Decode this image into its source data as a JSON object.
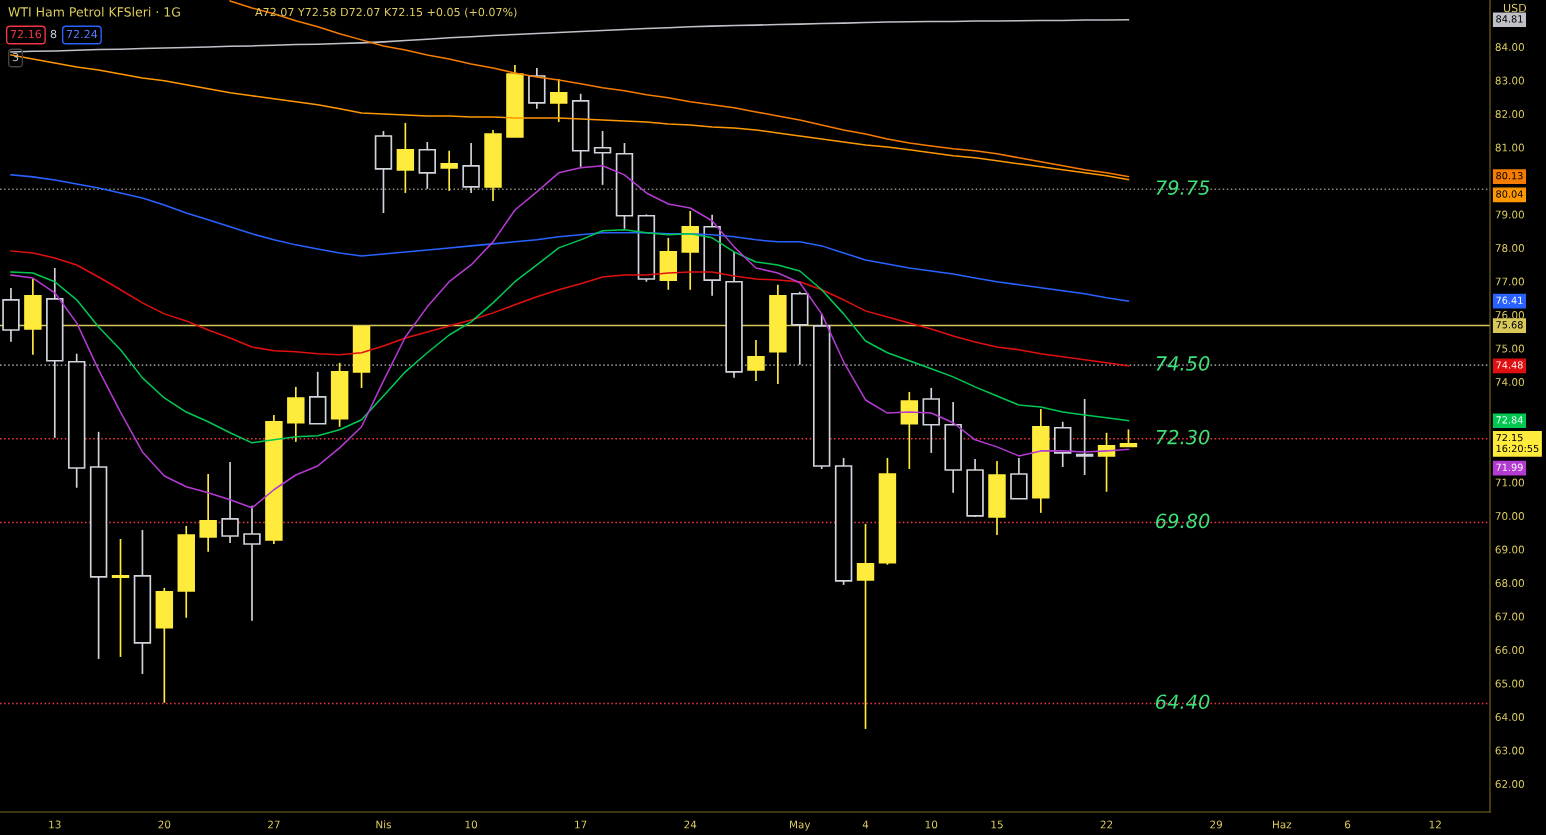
{
  "chart_data": {
    "type": "candlestick",
    "title": "WTI Ham Petrol KFSleri · 1G",
    "subtitle": "A72.07 Y72.58 D72.07 K72.15 +0.05 (+0.07%)",
    "categories": [
      null,
      null,
      "13",
      null,
      null,
      null,
      null,
      "20",
      null,
      null,
      null,
      null,
      "27",
      null,
      null,
      null,
      null,
      "Nis",
      null,
      null,
      null,
      "10",
      null,
      null,
      null,
      null,
      "17",
      null,
      null,
      null,
      null,
      "24",
      null,
      null,
      null,
      null,
      "May",
      null,
      null,
      "4",
      null,
      null,
      "10",
      null,
      null,
      "15",
      null,
      null,
      null,
      null,
      "22",
      null,
      null,
      null,
      null,
      "29",
      null,
      null,
      "Haz",
      null,
      null,
      "6",
      null,
      null,
      null,
      "12",
      null,
      null
    ],
    "ohlc": [
      [
        76.45,
        76.8,
        75.2,
        75.55
      ],
      [
        75.58,
        77.07,
        74.81,
        76.57
      ],
      [
        76.48,
        77.4,
        72.33,
        74.63
      ],
      [
        74.6,
        74.84,
        70.84,
        71.43
      ],
      [
        71.46,
        72.51,
        65.73,
        68.18
      ],
      [
        68.17,
        69.31,
        65.79,
        68.2
      ],
      [
        68.21,
        69.58,
        65.28,
        66.21
      ],
      [
        66.66,
        67.85,
        64.42,
        67.73
      ],
      [
        67.76,
        69.7,
        66.96,
        69.43
      ],
      [
        69.37,
        71.25,
        68.93,
        69.85
      ],
      [
        69.91,
        71.61,
        69.19,
        69.4
      ],
      [
        69.46,
        70.3,
        66.87,
        69.16
      ],
      [
        69.28,
        73.01,
        69.16,
        72.81
      ],
      [
        72.78,
        73.85,
        72.21,
        73.52
      ],
      [
        73.55,
        74.3,
        72.75,
        72.75
      ],
      [
        72.9,
        74.57,
        72.66,
        74.3
      ],
      [
        74.3,
        75.64,
        73.82,
        75.64
      ],
      [
        81.34,
        81.49,
        79.04,
        80.36
      ],
      [
        80.33,
        81.73,
        79.64,
        80.93
      ],
      [
        80.93,
        81.16,
        79.76,
        80.24
      ],
      [
        80.39,
        80.9,
        79.7,
        80.51
      ],
      [
        80.45,
        81.13,
        79.64,
        79.82
      ],
      [
        79.82,
        81.52,
        79.4,
        81.4
      ],
      [
        81.31,
        83.46,
        81.31,
        83.19
      ],
      [
        83.13,
        83.37,
        82.15,
        82.33
      ],
      [
        82.33,
        83.04,
        81.76,
        82.63
      ],
      [
        82.39,
        82.6,
        80.42,
        80.9
      ],
      [
        80.99,
        81.49,
        79.88,
        80.84
      ],
      [
        80.81,
        81.13,
        78.57,
        78.96
      ],
      [
        78.96,
        79.0,
        76.99,
        77.07
      ],
      [
        77.04,
        78.3,
        76.75,
        77.88
      ],
      [
        77.88,
        79.1,
        76.75,
        78.63
      ],
      [
        78.63,
        78.99,
        76.57,
        77.04
      ],
      [
        76.99,
        77.88,
        74.12,
        74.3
      ],
      [
        74.36,
        75.25,
        74.03,
        74.75
      ],
      [
        74.9,
        76.9,
        73.94,
        76.57
      ],
      [
        76.63,
        76.69,
        74.51,
        75.7
      ],
      [
        75.67,
        76.03,
        71.4,
        71.49
      ],
      [
        71.49,
        71.73,
        67.94,
        68.06
      ],
      [
        68.09,
        69.76,
        63.64,
        68.57
      ],
      [
        68.6,
        71.73,
        68.54,
        71.25
      ],
      [
        72.75,
        73.7,
        71.4,
        73.43
      ],
      [
        73.49,
        73.82,
        71.88,
        72.72
      ],
      [
        72.72,
        73.4,
        70.69,
        71.37
      ],
      [
        71.37,
        71.7,
        69.97,
        70.0
      ],
      [
        69.97,
        71.64,
        69.43,
        71.22
      ],
      [
        71.25,
        71.73,
        70.51,
        70.51
      ],
      [
        70.54,
        73.19,
        70.09,
        72.66
      ],
      [
        72.63,
        72.81,
        71.46,
        71.88
      ],
      [
        71.82,
        73.49,
        71.22,
        71.79
      ],
      [
        71.79,
        72.48,
        70.72,
        72.09
      ],
      [
        72.07,
        72.58,
        72.07,
        72.15
      ],
      null,
      null,
      null,
      null,
      null,
      null,
      null,
      null,
      null,
      null,
      null,
      null,
      null,
      null,
      null,
      null
    ],
    "colors": [
      "#d1d4dc",
      "#ffeb3b",
      "#d1d4dc",
      "#d1d4dc",
      "#d1d4dc",
      "#ffeb3b",
      "#d1d4dc",
      "#ffeb3b",
      "#ffeb3b",
      "#ffeb3b",
      "#d1d4dc",
      "#d1d4dc",
      "#ffeb3b",
      "#ffeb3b",
      "#d1d4dc",
      "#ffeb3b",
      "#ffeb3b",
      "#d1d4dc",
      "#ffeb3b",
      "#d1d4dc",
      "#ffeb3b",
      "#d1d4dc",
      "#ffeb3b",
      "#ffeb3b",
      "#d1d4dc",
      "#ffeb3b",
      "#d1d4dc",
      "#d1d4dc",
      "#d1d4dc",
      "#d1d4dc",
      "#ffeb3b",
      "#ffeb3b",
      "#d1d4dc",
      "#d1d4dc",
      "#ffeb3b",
      "#ffeb3b",
      "#d1d4dc",
      "#d1d4dc",
      "#d1d4dc",
      "#ffeb3b",
      "#ffeb3b",
      "#ffeb3b",
      "#d1d4dc",
      "#d1d4dc",
      "#d1d4dc",
      "#ffeb3b",
      "#d1d4dc",
      "#ffeb3b",
      "#d1d4dc",
      "#d1d4dc",
      "#ffeb3b",
      "#ffeb3b",
      null,
      null,
      null,
      null,
      null,
      null,
      null,
      null,
      null,
      null,
      null,
      null,
      null,
      null,
      null,
      null
    ],
    "series": [
      {
        "type": "line",
        "color": "#c0c0c8",
        "values": [
          83.85,
          83.87,
          83.88,
          83.9,
          83.92,
          83.93,
          83.95,
          83.97,
          83.98,
          84.0,
          84.02,
          84.03,
          84.05,
          84.07,
          84.08,
          84.1,
          84.12,
          84.15,
          84.19,
          84.23,
          84.27,
          84.3,
          84.34,
          84.37,
          84.4,
          84.43,
          84.46,
          84.49,
          84.52,
          84.55,
          84.57,
          84.6,
          84.62,
          84.64,
          84.65,
          84.67,
          84.68,
          84.7,
          84.71,
          84.73,
          84.74,
          84.75,
          84.76,
          84.76,
          84.77,
          84.77,
          84.78,
          84.79,
          84.79,
          84.8,
          84.8,
          84.81,
          null,
          null,
          null,
          null,
          null,
          null,
          null,
          null,
          null,
          null,
          null,
          null,
          null,
          null,
          null,
          null
        ]
      },
      {
        "type": "line",
        "color": "#f57c00",
        "values": [
          null,
          null,
          null,
          null,
          null,
          null,
          null,
          null,
          null,
          null,
          85.37,
          85.16,
          84.99,
          84.78,
          84.6,
          84.39,
          84.21,
          84.03,
          83.91,
          83.76,
          83.64,
          83.49,
          83.37,
          83.22,
          83.1,
          83.01,
          82.9,
          82.78,
          82.69,
          82.57,
          82.48,
          82.36,
          82.27,
          82.18,
          82.06,
          81.94,
          81.82,
          81.67,
          81.52,
          81.4,
          81.25,
          81.13,
          81.04,
          80.96,
          80.9,
          80.81,
          80.69,
          80.57,
          80.45,
          80.33,
          80.24,
          80.13,
          null,
          null,
          null,
          null,
          null,
          null,
          null,
          null,
          null,
          null,
          null,
          null,
          null,
          null,
          null,
          null
        ]
      },
      {
        "type": "line",
        "color": "#ff9800",
        "values": [
          83.76,
          83.64,
          83.52,
          83.4,
          83.31,
          83.19,
          83.07,
          82.99,
          82.87,
          82.75,
          82.63,
          82.54,
          82.45,
          82.36,
          82.27,
          82.15,
          82.03,
          82.0,
          81.97,
          81.94,
          81.94,
          81.91,
          81.91,
          81.88,
          81.88,
          81.88,
          81.85,
          81.82,
          81.79,
          81.76,
          81.7,
          81.67,
          81.61,
          81.58,
          81.52,
          81.43,
          81.34,
          81.25,
          81.16,
          81.07,
          81.01,
          80.93,
          80.84,
          80.75,
          80.69,
          80.6,
          80.51,
          80.42,
          80.33,
          80.24,
          80.15,
          80.04,
          null,
          null,
          null,
          null,
          null,
          null,
          null,
          null,
          null,
          null,
          null,
          null,
          null,
          null,
          null,
          null
        ]
      },
      {
        "type": "line",
        "color": "#2962ff",
        "values": [
          80.18,
          80.12,
          80.03,
          79.91,
          79.79,
          79.64,
          79.49,
          79.28,
          79.04,
          78.84,
          78.63,
          78.42,
          78.24,
          78.09,
          77.97,
          77.85,
          77.76,
          77.82,
          77.88,
          77.94,
          78.0,
          78.06,
          78.12,
          78.18,
          78.24,
          78.33,
          78.39,
          78.45,
          78.45,
          78.45,
          78.42,
          78.42,
          78.39,
          78.33,
          78.24,
          78.18,
          78.18,
          78.06,
          77.85,
          77.64,
          77.52,
          77.4,
          77.31,
          77.22,
          77.1,
          76.99,
          76.9,
          76.81,
          76.72,
          76.63,
          76.51,
          76.41,
          null,
          null,
          null,
          null,
          null,
          null,
          null,
          null,
          null,
          null,
          null,
          null,
          null,
          null,
          null,
          null
        ]
      },
      {
        "type": "line",
        "color": "#e01010",
        "values": [
          77.91,
          77.85,
          77.7,
          77.49,
          77.13,
          76.75,
          76.36,
          76.03,
          75.82,
          75.55,
          75.31,
          75.04,
          74.93,
          74.9,
          74.84,
          74.81,
          74.87,
          75.07,
          75.31,
          75.49,
          75.67,
          75.85,
          76.06,
          76.3,
          76.54,
          76.75,
          76.93,
          77.13,
          77.19,
          77.19,
          77.25,
          77.28,
          77.28,
          77.16,
          77.07,
          77.04,
          76.99,
          76.75,
          76.45,
          76.12,
          75.94,
          75.76,
          75.58,
          75.37,
          75.19,
          75.04,
          74.96,
          74.84,
          74.75,
          74.66,
          74.57,
          74.48,
          null,
          null,
          null,
          null,
          null,
          null,
          null,
          null,
          null,
          null,
          null,
          null,
          null,
          null,
          null,
          null
        ]
      },
      {
        "type": "line",
        "color": "#00c853",
        "values": [
          77.28,
          77.25,
          76.99,
          76.45,
          75.64,
          74.96,
          74.12,
          73.52,
          73.1,
          72.81,
          72.48,
          72.18,
          72.27,
          72.36,
          72.39,
          72.57,
          72.87,
          73.58,
          74.3,
          74.87,
          75.4,
          75.79,
          76.36,
          76.99,
          77.49,
          78.0,
          78.24,
          78.51,
          78.54,
          78.45,
          78.39,
          78.42,
          78.3,
          77.88,
          77.58,
          77.49,
          77.31,
          76.75,
          76.03,
          75.22,
          74.87,
          74.63,
          74.39,
          74.15,
          73.85,
          73.58,
          73.31,
          73.25,
          73.1,
          73.01,
          72.93,
          72.84,
          null,
          null,
          null,
          null,
          null,
          null,
          null,
          null,
          null,
          null,
          null,
          null,
          null,
          null,
          null,
          null
        ]
      },
      {
        "type": "line",
        "color": "#b33bd1",
        "values": [
          77.19,
          77.1,
          76.66,
          75.76,
          74.36,
          73.1,
          71.91,
          71.19,
          70.87,
          70.69,
          70.48,
          70.24,
          70.78,
          71.22,
          71.49,
          72.03,
          72.66,
          74.03,
          75.34,
          76.24,
          76.99,
          77.49,
          78.18,
          79.13,
          79.67,
          80.24,
          80.39,
          80.45,
          80.18,
          79.64,
          79.31,
          79.19,
          78.81,
          78.03,
          77.4,
          77.25,
          76.96,
          76.03,
          74.6,
          73.46,
          73.07,
          73.1,
          73.07,
          72.78,
          72.27,
          72.06,
          71.79,
          71.94,
          71.94,
          71.91,
          71.94,
          71.99,
          null,
          null,
          null,
          null,
          null,
          null,
          null,
          null,
          null,
          null,
          null,
          null,
          null,
          null,
          null,
          null
        ]
      }
    ],
    "ylim": [
      61.16,
      85.4
    ],
    "yticks": [
      {
        "value": 62,
        "label": "62.00"
      },
      {
        "value": 63,
        "label": "63.00"
      },
      {
        "value": 64,
        "label": "64.00"
      },
      {
        "value": 65,
        "label": "65.00"
      },
      {
        "value": 66,
        "label": "66.00"
      },
      {
        "value": 67,
        "label": "67.00"
      },
      {
        "value": 68,
        "label": "68.00"
      },
      {
        "value": 69,
        "label": "69.00"
      },
      {
        "value": 70,
        "label": "70.00"
      },
      {
        "value": 71,
        "label": "71.00"
      },
      {
        "value": 74,
        "label": "74.00"
      },
      {
        "value": 75,
        "label": "75.00"
      },
      {
        "value": 76,
        "label": "76.00"
      },
      {
        "value": 77,
        "label": "77.00"
      },
      {
        "value": 78,
        "label": "78.00"
      },
      {
        "value": 79,
        "label": "79.00"
      },
      {
        "value": 81,
        "label": "81.00"
      },
      {
        "value": 82,
        "label": "82.00"
      },
      {
        "value": 83,
        "label": "83.00"
      },
      {
        "value": 84,
        "label": "84.00"
      }
    ],
    "ref_lines": [
      {
        "axis": "y",
        "value": 75.68,
        "color": "#d8c85a",
        "line_style": "solid"
      },
      {
        "axis": "y",
        "value": 79.75,
        "label": "79.75",
        "color": "#8a8a70",
        "line_style": "dotted"
      },
      {
        "axis": "y",
        "value": 74.5,
        "label": "74.50",
        "color": "#8a8a8a",
        "line_style": "dotted"
      },
      {
        "axis": "y",
        "value": 72.3,
        "label": "72.30",
        "color": "#f23645",
        "line_style": "dotted"
      },
      {
        "axis": "y",
        "value": 69.8,
        "label": "69.80",
        "color": "#f23645",
        "line_style": "dotted"
      },
      {
        "axis": "y",
        "value": 64.4,
        "label": "64.40",
        "color": "#f23645",
        "line_style": "dotted"
      }
    ],
    "annotations": [
      "72.16",
      "8",
      "72.24",
      "3",
      "USD",
      "84.81",
      "80.13",
      "80.04",
      "76.41",
      "75.68",
      "74.48",
      "72.84",
      "72.15\n16:20:55",
      "71.99"
    ]
  }
}
